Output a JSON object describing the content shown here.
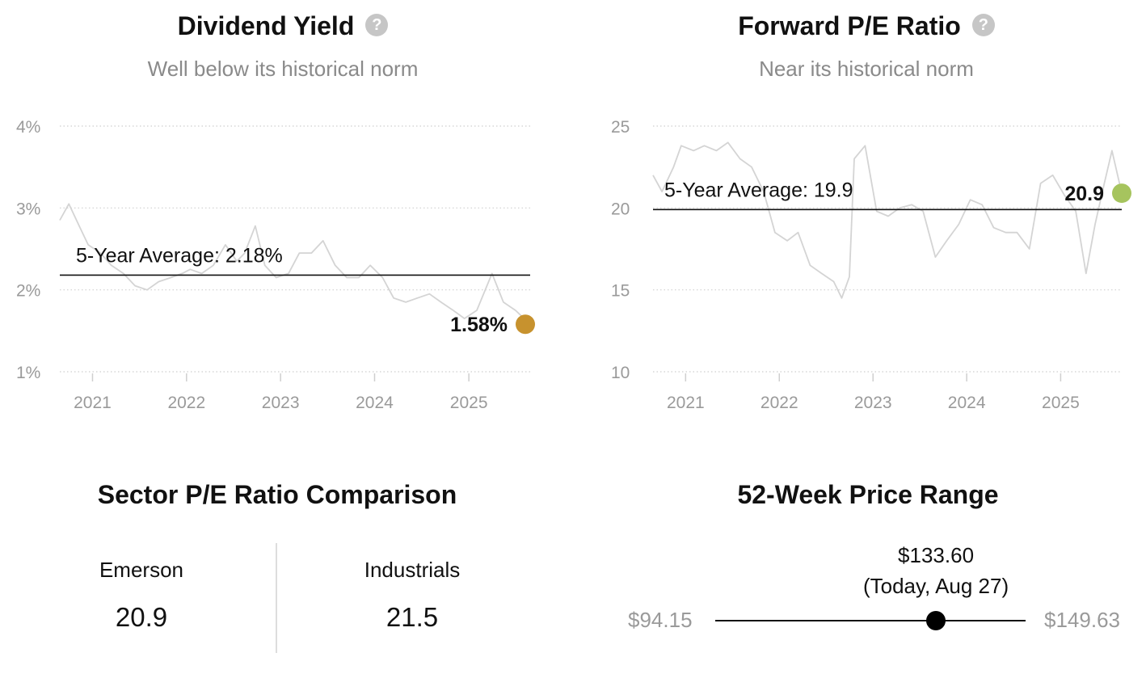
{
  "colors": {
    "yield_marker": "#C7922E",
    "pe_marker": "#A6C45E",
    "history_line": "#d4d4d4",
    "average_line": "#111111",
    "grid": "#cfcfcf",
    "tick_text": "#9a9a9a"
  },
  "dividend_yield": {
    "title": "Dividend Yield",
    "help_icon": "question-circle-icon",
    "subtitle": "Well below its historical norm",
    "avg_label": "5-Year Average: 2.18%",
    "current_label": "1.58%"
  },
  "forward_pe": {
    "title": "Forward P/E Ratio",
    "help_icon": "question-circle-icon",
    "subtitle": "Near its historical norm",
    "avg_label": "5-Year Average: 19.9",
    "current_label": "20.9"
  },
  "sector": {
    "title": "Sector P/E Ratio Comparison",
    "company_name": "Emerson",
    "company_value": "20.9",
    "sector_name": "Industrials",
    "sector_value": "21.5"
  },
  "price_range": {
    "title": "52-Week Price Range",
    "low_label": "$94.15",
    "high_label": "$149.63",
    "current_price": "$133.60",
    "current_note": "(Today, Aug 27)",
    "low": 94.15,
    "high": 149.63,
    "current": 133.6
  },
  "chart_data": [
    {
      "type": "line",
      "title": "Dividend Yield",
      "subtitle": "Well below its historical norm",
      "x_ticks": [
        "2021",
        "2022",
        "2023",
        "2024",
        "2025"
      ],
      "y_ticks": [
        "1%",
        "2%",
        "3%",
        "4%"
      ],
      "y_tick_values": [
        1,
        2,
        3,
        4
      ],
      "ylim": [
        1,
        4
      ],
      "xlim": [
        "2020-08-27",
        "2025-08-27"
      ],
      "grid": true,
      "series": [
        {
          "values": [
            [
              "2020-08-27",
              2.85
            ],
            [
              "2020-10-01",
              3.05
            ],
            [
              "2020-11-15",
              2.75
            ],
            [
              "2020-12-15",
              2.55
            ],
            [
              "2021-02-01",
              2.45
            ],
            [
              "2021-03-15",
              2.3
            ],
            [
              "2021-05-01",
              2.2
            ],
            [
              "2021-06-15",
              2.05
            ],
            [
              "2021-08-01",
              2.0
            ],
            [
              "2021-09-15",
              2.1
            ],
            [
              "2021-11-01",
              2.15
            ],
            [
              "2021-12-15",
              2.2
            ],
            [
              "2022-01-15",
              2.25
            ],
            [
              "2022-03-01",
              2.2
            ],
            [
              "2022-04-15",
              2.3
            ],
            [
              "2022-06-01",
              2.55
            ],
            [
              "2022-07-15",
              2.35
            ],
            [
              "2022-08-15",
              2.45
            ],
            [
              "2022-09-25",
              2.78
            ],
            [
              "2022-11-01",
              2.3
            ],
            [
              "2022-12-15",
              2.15
            ],
            [
              "2023-02-01",
              2.2
            ],
            [
              "2023-03-15",
              2.45
            ],
            [
              "2023-05-01",
              2.45
            ],
            [
              "2023-06-15",
              2.6
            ],
            [
              "2023-08-01",
              2.3
            ],
            [
              "2023-09-15",
              2.15
            ],
            [
              "2023-11-01",
              2.15
            ],
            [
              "2023-12-15",
              2.3
            ],
            [
              "2024-02-01",
              2.15
            ],
            [
              "2024-03-15",
              1.9
            ],
            [
              "2024-05-01",
              1.85
            ],
            [
              "2024-06-15",
              1.9
            ],
            [
              "2024-08-01",
              1.95
            ],
            [
              "2024-09-15",
              1.85
            ],
            [
              "2024-11-01",
              1.75
            ],
            [
              "2024-12-15",
              1.65
            ],
            [
              "2025-02-01",
              1.75
            ],
            [
              "2025-04-01",
              2.2
            ],
            [
              "2025-05-15",
              1.85
            ],
            [
              "2025-07-01",
              1.75
            ],
            [
              "2025-08-27",
              1.58
            ]
          ]
        },
        {
          "name": "5-Year Average",
          "values": [
            2.18
          ]
        }
      ],
      "current": {
        "date": "2025-08-27",
        "value": 1.58
      }
    },
    {
      "type": "line",
      "title": "Forward P/E Ratio",
      "subtitle": "Near its historical norm",
      "x_ticks": [
        "2021",
        "2022",
        "2023",
        "2024",
        "2025"
      ],
      "y_ticks": [
        "10",
        "15",
        "20",
        "25"
      ],
      "y_tick_values": [
        10,
        15,
        20,
        25
      ],
      "ylim": [
        10,
        25
      ],
      "xlim": [
        "2020-08-27",
        "2025-08-27"
      ],
      "grid": true,
      "series": [
        {
          "values": [
            [
              "2020-08-27",
              22.0
            ],
            [
              "2020-10-01",
              21.0
            ],
            [
              "2020-11-15",
              22.5
            ],
            [
              "2020-12-15",
              23.8
            ],
            [
              "2021-02-01",
              23.5
            ],
            [
              "2021-03-15",
              23.8
            ],
            [
              "2021-05-01",
              23.5
            ],
            [
              "2021-06-15",
              24.0
            ],
            [
              "2021-08-01",
              23.0
            ],
            [
              "2021-09-15",
              22.5
            ],
            [
              "2021-11-01",
              21.0
            ],
            [
              "2021-12-15",
              18.5
            ],
            [
              "2022-02-01",
              18.0
            ],
            [
              "2022-03-15",
              18.5
            ],
            [
              "2022-05-01",
              16.5
            ],
            [
              "2022-06-15",
              16.0
            ],
            [
              "2022-08-01",
              15.5
            ],
            [
              "2022-09-01",
              14.5
            ],
            [
              "2022-10-01",
              15.8
            ],
            [
              "2022-10-20",
              23.0
            ],
            [
              "2022-12-01",
              23.8
            ],
            [
              "2023-01-15",
              19.8
            ],
            [
              "2023-03-01",
              19.5
            ],
            [
              "2023-04-15",
              20.0
            ],
            [
              "2023-06-01",
              20.2
            ],
            [
              "2023-07-15",
              19.8
            ],
            [
              "2023-09-01",
              17.0
            ],
            [
              "2023-10-15",
              18.0
            ],
            [
              "2023-12-01",
              19.0
            ],
            [
              "2024-01-15",
              20.5
            ],
            [
              "2024-03-01",
              20.2
            ],
            [
              "2024-04-15",
              18.8
            ],
            [
              "2024-06-01",
              18.5
            ],
            [
              "2024-07-15",
              18.5
            ],
            [
              "2024-09-01",
              17.5
            ],
            [
              "2024-10-15",
              21.5
            ],
            [
              "2024-12-01",
              22.0
            ],
            [
              "2025-01-15",
              20.8
            ],
            [
              "2025-03-01",
              19.8
            ],
            [
              "2025-04-10",
              16.0
            ],
            [
              "2025-05-15",
              19.0
            ],
            [
              "2025-06-20",
              21.5
            ],
            [
              "2025-07-20",
              23.5
            ],
            [
              "2025-08-27",
              20.9
            ]
          ]
        },
        {
          "name": "5-Year Average",
          "values": [
            19.9
          ]
        }
      ],
      "current": {
        "date": "2025-08-27",
        "value": 20.9
      }
    }
  ]
}
